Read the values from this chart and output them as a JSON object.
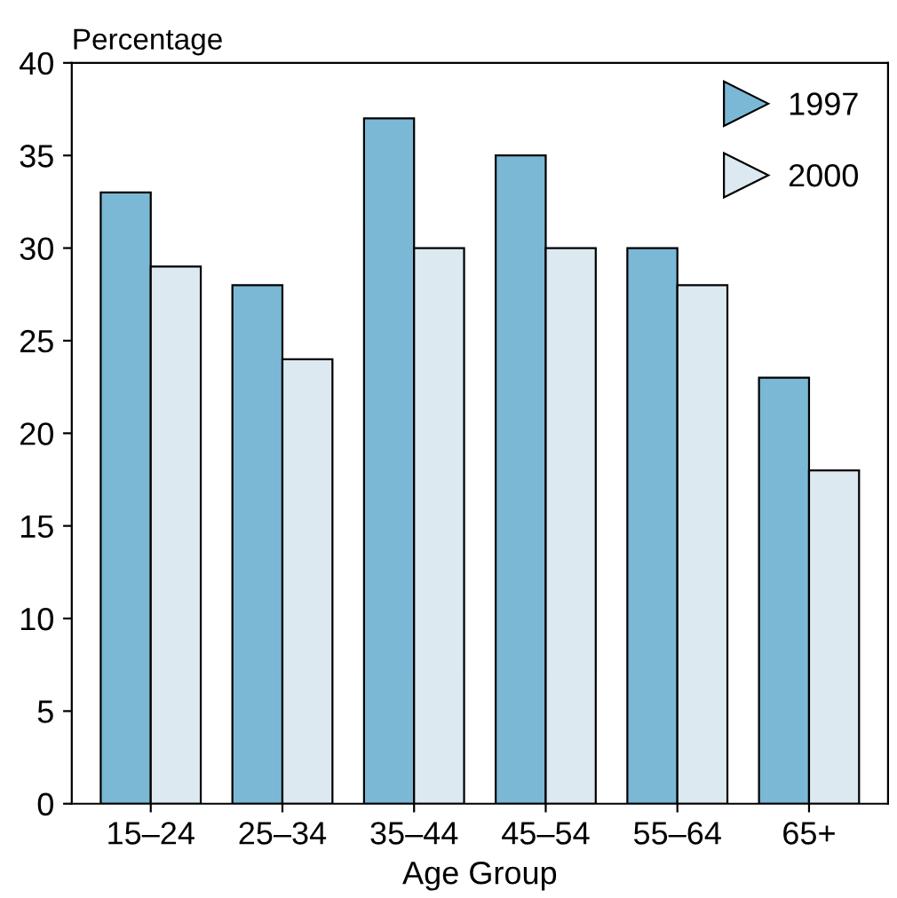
{
  "chart_data": {
    "type": "bar",
    "xlabel": "Age Group",
    "ylabel": "Percentage",
    "categories": [
      "15–24",
      "25–34",
      "35–44",
      "45–54",
      "55–64",
      "65+"
    ],
    "series": [
      {
        "name": "1997",
        "color": "#7ab8d6",
        "values": [
          33,
          28,
          37,
          35,
          30,
          23
        ]
      },
      {
        "name": "2000",
        "color": "#dce9f1",
        "values": [
          29,
          24,
          30,
          30,
          28,
          18
        ]
      }
    ],
    "ylim": [
      0,
      40
    ],
    "yticks": [
      0,
      5,
      10,
      15,
      20,
      25,
      30,
      35,
      40
    ],
    "grid": false,
    "legend": "top right"
  }
}
